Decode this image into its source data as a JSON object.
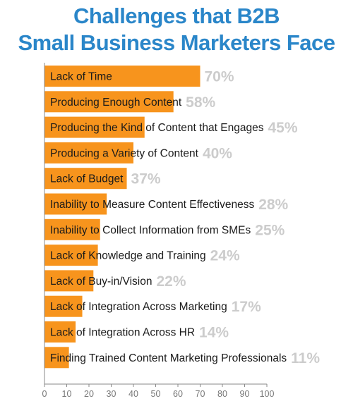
{
  "chart_data": {
    "type": "bar",
    "orientation": "horizontal",
    "title": "Challenges that B2B Small Business Marketers Face",
    "title_lines": [
      "Challenges that B2B",
      "Small Business Marketers Face"
    ],
    "categories": [
      "Lack of Time",
      "Producing Enough Content",
      "Producing the Kind of Content that Engages",
      "Producing a Variety of Content",
      "Lack of Budget",
      "Inability to Measure Content Effectiveness",
      "Inability to Collect Information from SMEs",
      "Lack of Knowledge and Training",
      "Lack of Buy-in/Vision",
      "Lack of Integration Across Marketing",
      "Lack of Integration Across HR",
      "Finding Trained Content Marketing Professionals"
    ],
    "values": [
      70,
      58,
      45,
      40,
      37,
      28,
      25,
      24,
      22,
      17,
      14,
      11
    ],
    "value_labels": [
      "70%",
      "58%",
      "45%",
      "40%",
      "37%",
      "28%",
      "25%",
      "24%",
      "22%",
      "17%",
      "14%",
      "11%"
    ],
    "xlim": [
      0,
      100
    ],
    "xticks": [
      0,
      10,
      20,
      30,
      40,
      50,
      60,
      70,
      80,
      90,
      100
    ],
    "grid": false,
    "legend": "none",
    "colors": {
      "bar": "#f7941d",
      "value_label": "#cccccc",
      "title": "#2a86c9",
      "axis": "#888888"
    }
  }
}
